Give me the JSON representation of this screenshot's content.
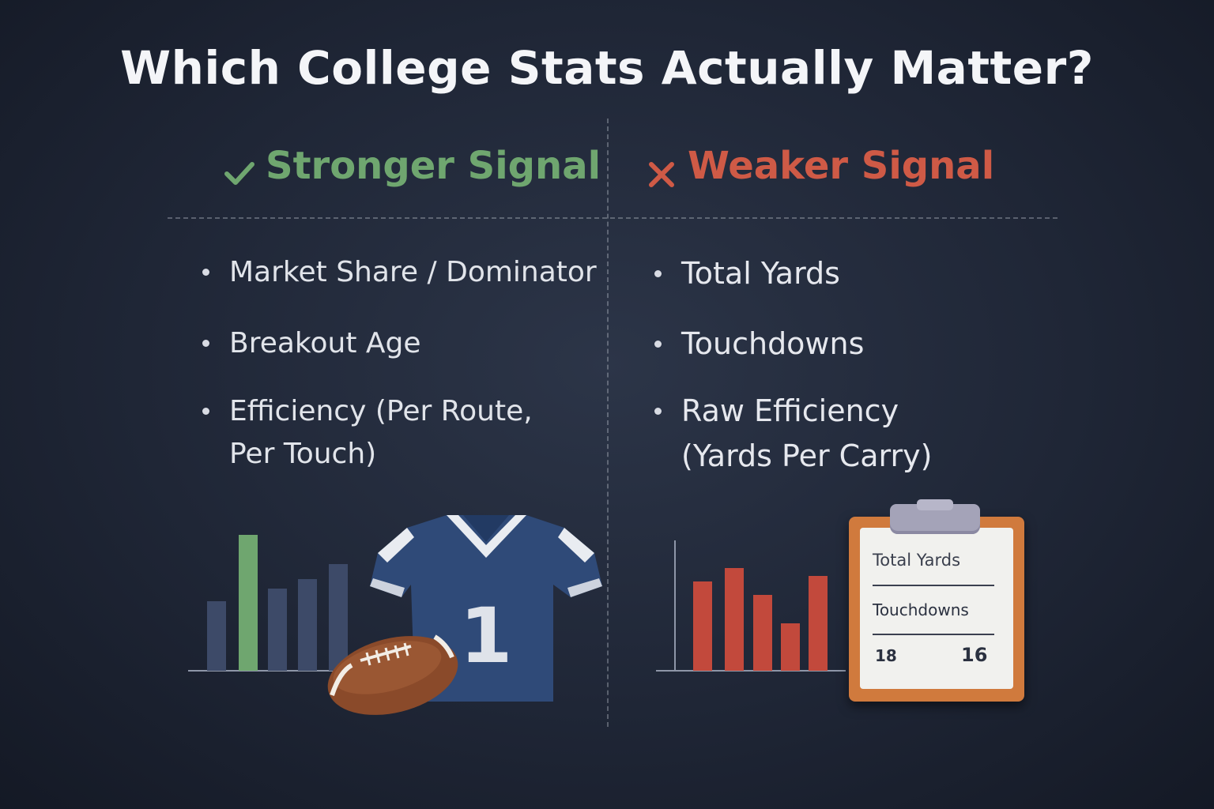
{
  "title": "Which College Stats Actually Matter?",
  "strong": {
    "heading": "Stronger Signal",
    "icon": "checkmark-icon",
    "color": "#6fa66f",
    "items": [
      {
        "line1": "Market Share / Dominator",
        "line2": ""
      },
      {
        "line1": "Breakout Age",
        "line2": ""
      },
      {
        "line1": "Efficiency (Per Route,",
        "line2": "Per Touch)"
      }
    ]
  },
  "weak": {
    "heading": "Weaker Signal",
    "icon": "x-icon",
    "color": "#cf5a46",
    "items": [
      {
        "line1": "Total Yards",
        "line2": ""
      },
      {
        "line1": "Touchdowns",
        "line2": ""
      },
      {
        "line1": "Raw Efficiency",
        "line2": "(Yards Per Carry)"
      }
    ]
  },
  "jersey": {
    "number": "1"
  },
  "clipboard": {
    "row1": "Total Yards",
    "row2": "Touchdowns",
    "num_left": "18",
    "num_right": "16"
  },
  "colors": {
    "background": "#1f2636",
    "strong_bar": "#6fa66f",
    "neutral_bar": "#3d4a68",
    "weak_bar": "#c2493c",
    "jersey": "#2f4a78",
    "football": "#8a4a2a",
    "clipboard": "#d07a3d"
  }
}
